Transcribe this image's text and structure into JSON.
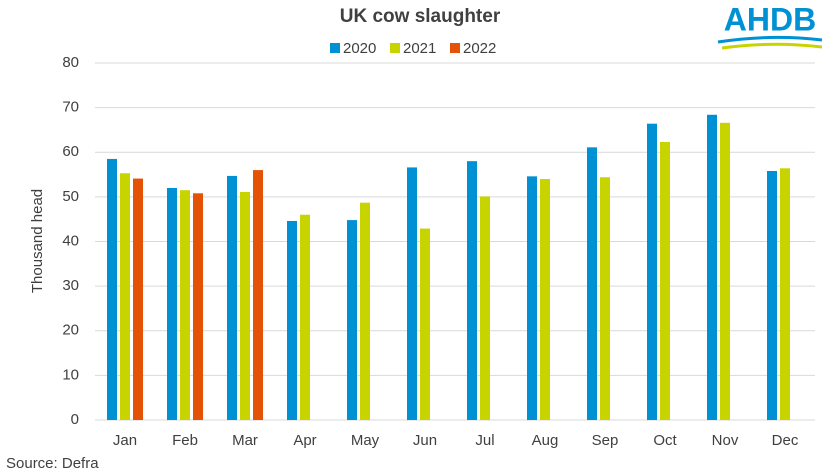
{
  "chart_data": {
    "type": "bar",
    "title": "UK cow slaughter",
    "y_label": "Thousand head",
    "source": "Source: Defra",
    "logo": "AHDB",
    "categories": [
      "Jan",
      "Feb",
      "Mar",
      "Apr",
      "May",
      "Jun",
      "Jul",
      "Aug",
      "Sep",
      "Oct",
      "Nov",
      "Dec"
    ],
    "series": [
      {
        "name": "2020",
        "color": "#0090d4",
        "values": [
          58.5,
          52.0,
          54.7,
          44.6,
          44.8,
          56.6,
          58.0,
          54.6,
          61.1,
          66.4,
          68.4,
          55.8
        ]
      },
      {
        "name": "2021",
        "color": "#c8d400",
        "values": [
          55.3,
          51.5,
          51.1,
          46.0,
          48.7,
          42.9,
          50.1,
          54.0,
          54.4,
          62.3,
          66.6,
          56.4
        ]
      },
      {
        "name": "2022",
        "color": "#e35205",
        "values": [
          54.1,
          50.8,
          56.0,
          null,
          null,
          null,
          null,
          null,
          null,
          null,
          null,
          null
        ]
      }
    ],
    "ylim": [
      0,
      80
    ],
    "yticks": [
      0,
      10,
      20,
      30,
      40,
      50,
      60,
      70,
      80
    ],
    "grid": true
  }
}
